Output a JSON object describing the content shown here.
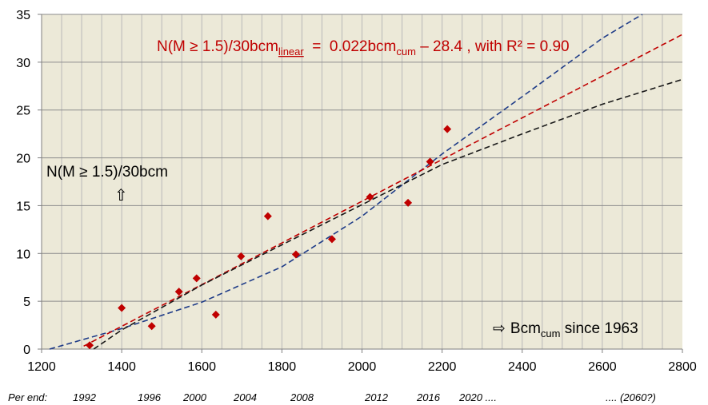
{
  "chart_data": {
    "type": "scatter",
    "title": "",
    "xlabel": "",
    "ylabel": "",
    "xlim": [
      1200,
      2800
    ],
    "ylim": [
      0,
      35
    ],
    "x_ticks": [
      1200,
      1400,
      1600,
      1800,
      2000,
      2200,
      2400,
      2600,
      2800
    ],
    "y_ticks": [
      0,
      5,
      10,
      15,
      20,
      25,
      30,
      35
    ],
    "grid": true,
    "background": "#ece9d8",
    "points": {
      "color": "#c00000",
      "x": [
        1320,
        1400,
        1475,
        1543,
        1587,
        1635,
        1698,
        1765,
        1835,
        1925,
        2020,
        2115,
        2170,
        2213
      ],
      "y": [
        0.4,
        4.3,
        2.4,
        6.0,
        7.4,
        3.6,
        9.7,
        13.9,
        9.9,
        11.5,
        15.9,
        15.3,
        19.6,
        23.0
      ]
    },
    "trendlines": [
      {
        "color": "#1f3c88",
        "style": "dashed",
        "x": [
          1220,
          1400,
          1600,
          1800,
          2000,
          2200,
          2400,
          2600,
          2700
        ],
        "y": [
          0.0,
          2.15,
          4.9,
          8.6,
          13.9,
          20.4,
          26.4,
          32.5,
          35.0
        ]
      },
      {
        "color": "#c00000",
        "style": "dashed",
        "x": [
          1305,
          2800
        ],
        "y": [
          0.31,
          32.9
        ]
      },
      {
        "color": "#1a1a1a",
        "style": "dashed",
        "x": [
          1330,
          1400,
          1600,
          1800,
          2000,
          2200,
          2400,
          2600,
          2800
        ],
        "y": [
          0.0,
          2.0,
          6.7,
          10.9,
          15.1,
          19.3,
          22.5,
          25.6,
          28.2
        ]
      }
    ],
    "annotations": {
      "equation": {
        "lhs_main": "N(M ≥ 1.5)/30bcm",
        "lhs_sub": "linear",
        "rhs_main": "  =  0.022bcm",
        "rhs_sub": "cum",
        "rhs_tail": " – 28.4 , with R² = 0.90",
        "color": "#c00000"
      },
      "y_quantity": "N(M ≥ 1.5)/30bcm",
      "y_arrow": "⇧",
      "x_quantity": {
        "arrow": "⇨",
        "main": "Bcm",
        "sub": "cum",
        "tail": " since 1963"
      }
    },
    "year_row": {
      "prefix": "Per end:",
      "labels": [
        "1992",
        "1996",
        "2000",
        "2004",
        "2008",
        "2012",
        "2016",
        "2020 ....",
        ".... (2060?)"
      ]
    }
  }
}
